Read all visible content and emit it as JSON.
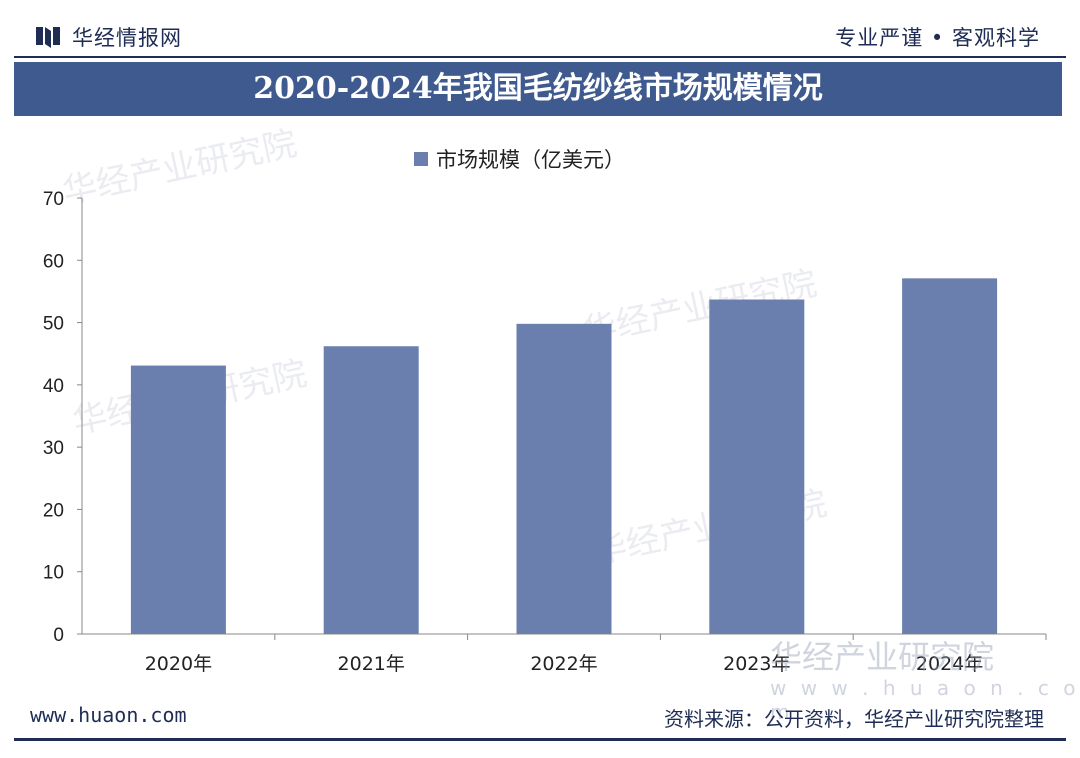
{
  "header": {
    "brand": "华经情报网",
    "motto": "专业严谨 • 客观科学"
  },
  "title": "2020-2024年我国毛纺纱线市场规模情况",
  "watermark": {
    "main": "华经产业研究院",
    "site": "www.huaon.com",
    "small_site": "w w w . h u a o n . c o m"
  },
  "footer": {
    "site": "www.huaon.com",
    "source": "资料来源：公开资料，华经产业研究院整理"
  },
  "colors": {
    "bar": "#6a7fad",
    "title_bg": "#3f5a8e",
    "dark": "#1f2d55"
  },
  "chart_data": {
    "type": "bar",
    "title": "2020-2024年我国毛纺纱线市场规模情况",
    "categories": [
      "2020年",
      "2021年",
      "2022年",
      "2023年",
      "2024年"
    ],
    "series": [
      {
        "name": "市场规模（亿美元）",
        "values": [
          43.1,
          46.2,
          49.8,
          53.7,
          57.1
        ]
      }
    ],
    "ylim": [
      0,
      70
    ],
    "yticks": [
      0,
      10,
      20,
      30,
      40,
      50,
      60,
      70
    ],
    "legend": "top-center",
    "grid": false
  }
}
